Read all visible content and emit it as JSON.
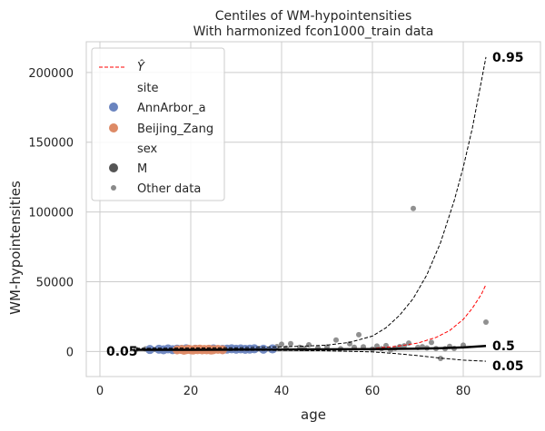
{
  "chart_data": {
    "type": "scatter",
    "title": "Centiles of WM-hypointensities",
    "subtitle": "With harmonized fcon1000_train data",
    "xlabel": "age",
    "ylabel": "WM-hypointensities",
    "xlim": [
      -3,
      97
    ],
    "ylim": [
      -18000,
      222000
    ],
    "xticks": [
      0,
      20,
      40,
      60,
      80
    ],
    "yticks": [
      0,
      50000,
      100000,
      150000,
      200000
    ],
    "xtick_labels": [
      "0",
      "20",
      "40",
      "60",
      "80"
    ],
    "ytick_labels": [
      "0",
      "50000",
      "100000",
      "150000",
      "200000"
    ],
    "grid": true,
    "legend_position": "top-left",
    "legend": {
      "yhat_label": "Ŷ",
      "site_title": "site",
      "site_a": "AnnArbor_a",
      "site_b": "Beijing_Zang",
      "sex_title": "sex",
      "sex_m": "M",
      "other": "Other data"
    },
    "colors": {
      "annarbor": "#6a84bf",
      "beijing": "#dd8a66",
      "other": "#8a8a8a",
      "median": "#000000",
      "yhat": "#ff0000",
      "grid": "#cccccc"
    },
    "centile_labels": {
      "upper": "0.95",
      "median": "0.5",
      "lower": "0.05",
      "left": "0.05"
    },
    "series": [
      {
        "name": "0.95",
        "style": "dashed",
        "x": [
          8,
          20,
          30,
          40,
          50,
          55,
          60,
          63,
          66,
          69,
          72,
          75,
          78,
          80,
          82,
          83,
          84,
          85
        ],
        "y": [
          2200,
          2400,
          2700,
          3200,
          4500,
          6500,
          11000,
          17000,
          26000,
          38000,
          55000,
          78000,
          108000,
          132000,
          160000,
          177000,
          194000,
          211000
        ]
      },
      {
        "name": "Ŷ",
        "style": "dashed-red",
        "x": [
          8,
          30,
          50,
          60,
          65,
          70,
          74,
          77,
          80,
          82,
          84,
          85
        ],
        "y": [
          1000,
          1100,
          1500,
          2200,
          3500,
          6000,
          10000,
          15000,
          23000,
          31000,
          41000,
          48000
        ]
      },
      {
        "name": "0.5",
        "style": "solid",
        "x": [
          8,
          20,
          30,
          40,
          50,
          60,
          70,
          75,
          80,
          85
        ],
        "y": [
          1200,
          1200,
          1300,
          1400,
          1500,
          1700,
          2000,
          2300,
          2900,
          4000
        ]
      },
      {
        "name": "0.05",
        "style": "dashed",
        "x": [
          8,
          20,
          30,
          40,
          50,
          60,
          65,
          70,
          75,
          80,
          85
        ],
        "y": [
          900,
          900,
          800,
          700,
          500,
          -300,
          -1500,
          -3000,
          -4800,
          -6200,
          -7000
        ]
      }
    ],
    "scatter_annarbor": {
      "x": [
        11,
        13,
        14,
        15,
        16,
        17,
        18,
        19,
        21,
        24,
        25,
        27,
        28,
        29,
        30,
        31,
        32,
        33,
        34,
        36,
        38
      ],
      "y": [
        1400,
        1600,
        1200,
        1800,
        1300,
        1700,
        1500,
        1900,
        1600,
        1400,
        1800,
        1500,
        1700,
        1900,
        1600,
        1800,
        1500,
        1700,
        1900,
        1600,
        1800
      ]
    },
    "scatter_beijing": {
      "x": [
        17,
        18,
        18.5,
        19,
        19.5,
        20,
        20.5,
        21,
        21.5,
        22,
        22.5,
        23,
        23.5,
        24,
        24.5,
        25,
        26,
        27
      ],
      "y": [
        1100,
        1400,
        900,
        1300,
        1600,
        1200,
        1000,
        1500,
        1300,
        1700,
        1100,
        1400,
        1200,
        1600,
        1000,
        1300,
        1500,
        1200
      ]
    },
    "scatter_other": {
      "x": [
        8,
        10,
        12,
        35,
        39,
        40,
        41,
        42,
        44,
        45,
        46,
        48,
        50,
        52,
        53,
        55,
        56,
        57,
        58,
        60,
        61,
        62,
        63,
        64,
        65,
        66,
        67,
        68,
        69,
        70,
        71,
        72,
        73,
        74,
        75,
        76,
        77,
        78,
        80,
        85
      ],
      "y": [
        1500,
        1800,
        1400,
        2200,
        3500,
        5200,
        2400,
        5600,
        3000,
        2100,
        4800,
        2600,
        3200,
        8200,
        1900,
        5500,
        3000,
        12000,
        3300,
        1700,
        3900,
        2000,
        4200,
        1000,
        2300,
        3500,
        4000,
        6000,
        102500,
        2800,
        3400,
        2500,
        6500,
        2100,
        -5000,
        1900,
        3600,
        2200,
        4500,
        21000
      ]
    }
  }
}
